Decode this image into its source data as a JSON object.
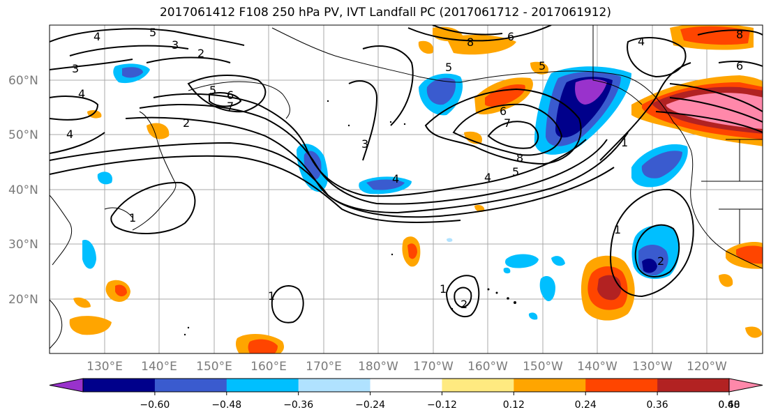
{
  "title": "2017061412 F108 250 hPa PV, IVT Landfall PC (2017061712 - 2017061912)",
  "lat_labels": [
    "60°N",
    "50°N",
    "40°N",
    "30°N",
    "20°N"
  ],
  "lon_labels": [
    "130°E",
    "140°E",
    "150°E",
    "160°E",
    "170°E",
    "180°W",
    "170°W",
    "160°W",
    "150°W",
    "140°W",
    "130°W",
    "120°W"
  ],
  "colorbar": {
    "colors": [
      "#9932cc",
      "#00008b",
      "#3a5bcf",
      "#00bfff",
      "#b0e2ff",
      "#ffffff",
      "#ffea80",
      "#ffa500",
      "#ff4500",
      "#b22222",
      "#ff88aa"
    ],
    "ticks": [
      "−0.60",
      "−0.48",
      "−0.36",
      "−0.24",
      "−0.12",
      "0.12",
      "0.24",
      "0.36",
      "0.48",
      "0.60"
    ]
  },
  "contour_labels": [
    "4",
    "5",
    "3",
    "2",
    "3",
    "4",
    "4",
    "5",
    "6",
    "7",
    "2",
    "3",
    "4",
    "5",
    "6",
    "7",
    "8",
    "4",
    "5",
    "1",
    "4",
    "6",
    "8",
    "5",
    "6",
    "8",
    "1",
    "1",
    "2",
    "1",
    "1",
    "2"
  ]
}
